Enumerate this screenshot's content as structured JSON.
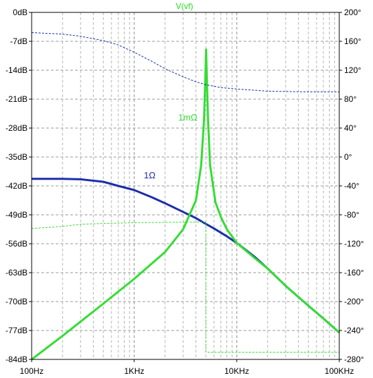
{
  "chart_data": {
    "type": "line",
    "title": "V(vf)",
    "x_scale": "log",
    "x_range_hz": [
      100,
      100000
    ],
    "x_ticks": [
      {
        "value": 100,
        "label": "100Hz"
      },
      {
        "value": 1000,
        "label": "1KHz"
      },
      {
        "value": 10000,
        "label": "10KHz"
      },
      {
        "value": 100000,
        "label": "100KHz"
      }
    ],
    "y_left": {
      "unit": "dB",
      "range": [
        -84,
        0
      ],
      "ticks": [
        {
          "value": 0,
          "label": "0dB"
        },
        {
          "value": -7,
          "label": "-7dB"
        },
        {
          "value": -14,
          "label": "-14dB"
        },
        {
          "value": -21,
          "label": "-21dB"
        },
        {
          "value": -28,
          "label": "-28dB"
        },
        {
          "value": -35,
          "label": "-35dB"
        },
        {
          "value": -42,
          "label": "-42dB"
        },
        {
          "value": -49,
          "label": "-49dB"
        },
        {
          "value": -56,
          "label": "-56dB"
        },
        {
          "value": -63,
          "label": "-63dB"
        },
        {
          "value": -70,
          "label": "-70dB"
        },
        {
          "value": -77,
          "label": "-77dB"
        },
        {
          "value": -84,
          "label": "-84dB"
        }
      ]
    },
    "y_right": {
      "unit": "degrees",
      "range": [
        -280,
        200
      ],
      "ticks": [
        {
          "value": 200,
          "label": "200°"
        },
        {
          "value": 160,
          "label": "160°"
        },
        {
          "value": 120,
          "label": "120°"
        },
        {
          "value": 80,
          "label": "80°"
        },
        {
          "value": 40,
          "label": "40°"
        },
        {
          "value": 0,
          "label": "0°"
        },
        {
          "value": -40,
          "label": "-40°"
        },
        {
          "value": -80,
          "label": "-80°"
        },
        {
          "value": -120,
          "label": "-120°"
        },
        {
          "value": -160,
          "label": "-160°"
        },
        {
          "value": -200,
          "label": "-200°"
        },
        {
          "value": -240,
          "label": "-240°"
        },
        {
          "value": -280,
          "label": "-280°"
        }
      ]
    },
    "grid": true,
    "series": [
      {
        "name": "1Ω",
        "quantity": "magnitude",
        "axis": "left",
        "color": "#1a2ea8",
        "dashed": false,
        "points": [
          [
            100,
            -40.3
          ],
          [
            200,
            -40.3
          ],
          [
            300,
            -40.4
          ],
          [
            500,
            -41.0
          ],
          [
            700,
            -42.0
          ],
          [
            1000,
            -43.0
          ],
          [
            1500,
            -44.8
          ],
          [
            2000,
            -46.2
          ],
          [
            3000,
            -48.3
          ],
          [
            4000,
            -49.8
          ],
          [
            5000,
            -51.2
          ],
          [
            6000,
            -52.3
          ],
          [
            8000,
            -54.2
          ],
          [
            10000,
            -55.8
          ],
          [
            15000,
            -59.2
          ],
          [
            20000,
            -62.0
          ],
          [
            30000,
            -66.2
          ],
          [
            50000,
            -71.0
          ],
          [
            70000,
            -74.1
          ],
          [
            100000,
            -77.5
          ]
        ]
      },
      {
        "name": "1mΩ",
        "quantity": "magnitude",
        "axis": "left",
        "color": "#33dd33",
        "dashed": false,
        "points": [
          [
            100,
            -84
          ],
          [
            200,
            -78.3
          ],
          [
            500,
            -70.5
          ],
          [
            1000,
            -64.5
          ],
          [
            2000,
            -58.0
          ],
          [
            3000,
            -52.5
          ],
          [
            4000,
            -45.5
          ],
          [
            4500,
            -37.0
          ],
          [
            4800,
            -26.0
          ],
          [
            4950,
            -15.0
          ],
          [
            5030,
            -9.0
          ],
          [
            5100,
            -15.0
          ],
          [
            5250,
            -26.0
          ],
          [
            5500,
            -37.0
          ],
          [
            6200,
            -46.0
          ],
          [
            7000,
            -49.5
          ],
          [
            8000,
            -52.5
          ],
          [
            10000,
            -55.8
          ],
          [
            15000,
            -59.5
          ],
          [
            20000,
            -62.0
          ],
          [
            30000,
            -66.2
          ],
          [
            50000,
            -71.0
          ],
          [
            70000,
            -74.1
          ],
          [
            100000,
            -77.5
          ]
        ]
      },
      {
        "name": "1Ω",
        "quantity": "phase",
        "axis": "right",
        "color": "#1a2ea8",
        "dashed": true,
        "points": [
          [
            100,
            172
          ],
          [
            200,
            170
          ],
          [
            300,
            167
          ],
          [
            500,
            161
          ],
          [
            700,
            155
          ],
          [
            1000,
            145
          ],
          [
            1500,
            132
          ],
          [
            2000,
            122
          ],
          [
            3000,
            111
          ],
          [
            4000,
            104
          ],
          [
            5000,
            100
          ],
          [
            7000,
            96
          ],
          [
            10000,
            94
          ],
          [
            20000,
            91
          ],
          [
            50000,
            90
          ],
          [
            100000,
            90
          ]
        ]
      },
      {
        "name": "1mΩ",
        "quantity": "phase",
        "axis": "right",
        "color": "#33dd33",
        "dashed": true,
        "points": [
          [
            100,
            -99
          ],
          [
            200,
            -96
          ],
          [
            300,
            -93
          ],
          [
            500,
            -92
          ],
          [
            1000,
            -91
          ],
          [
            2000,
            -90.5
          ],
          [
            5000,
            -90
          ],
          [
            5000,
            -270
          ],
          [
            10000,
            -270
          ],
          [
            100000,
            -270
          ]
        ]
      }
    ],
    "annotations": [
      {
        "text": "1mΩ",
        "near": "resonance peak",
        "color": "#33dd33"
      },
      {
        "text": "1Ω",
        "near": "blue magnitude curve",
        "color": "#1a2ea8"
      }
    ]
  }
}
